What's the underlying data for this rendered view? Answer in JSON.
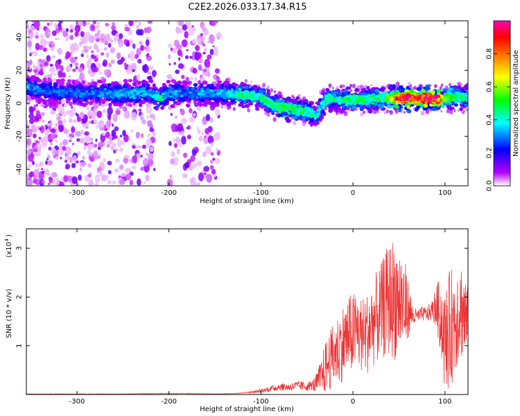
{
  "figure": {
    "title": "C2E2.2026.033.17.34.R15"
  },
  "chart_data": [
    {
      "type": "heatmap",
      "name": "spectrogram",
      "xlabel": "Height of straight line (km)",
      "ylabel": "Frequency (Hz)",
      "xlim": [
        -355,
        125
      ],
      "ylim": [
        -50,
        50
      ],
      "xticks": [
        -300,
        -200,
        -100,
        0,
        100
      ],
      "yticks": [
        -40,
        -20,
        0,
        20,
        40
      ],
      "xtick_labels": [
        "-300",
        "-200",
        "-100",
        "0",
        "100"
      ],
      "ytick_labels": [
        "-40",
        "-20",
        "0",
        "20",
        "40"
      ],
      "colorbar": {
        "label": "Normalized spectral amplitude",
        "range": [
          0,
          1
        ],
        "ticks": [
          0.0,
          0.2,
          0.4,
          0.6,
          0.8
        ],
        "tick_labels": [
          "0.0",
          "0.2",
          "0.4",
          "0.6",
          "0.8"
        ],
        "colors": [
          "#ffffff",
          "#b400ff",
          "#0000ff",
          "#00ffff",
          "#00ff00",
          "#ffff00",
          "#ff8000",
          "#ff0000",
          "#ff00b4"
        ]
      },
      "ridge": {
        "x": [
          -355,
          -340,
          -330,
          -320,
          -300,
          -280,
          -260,
          -240,
          -220,
          -210,
          -200,
          -180,
          -160,
          -140,
          -120,
          -100,
          -90,
          -80,
          -70,
          -60,
          -50,
          -40,
          -35,
          -30,
          -20,
          -10,
          0,
          10,
          20,
          30,
          40,
          50,
          60,
          70,
          80,
          90,
          100,
          110,
          125
        ],
        "y": [
          10,
          8,
          8,
          7,
          6,
          6,
          6,
          6,
          6,
          3,
          6,
          6,
          6,
          6,
          5,
          4,
          0,
          -2,
          -3,
          -4,
          -5,
          -8,
          -2,
          2,
          3,
          2,
          2,
          2,
          3,
          3,
          3,
          3,
          3,
          3,
          3,
          3,
          3,
          4,
          3
        ],
        "amplitude": [
          0.35,
          0.3,
          0.3,
          0.3,
          0.3,
          0.3,
          0.35,
          0.35,
          0.35,
          0.45,
          0.35,
          0.3,
          0.35,
          0.35,
          0.45,
          0.45,
          0.5,
          0.5,
          0.5,
          0.5,
          0.45,
          0.4,
          0.4,
          0.45,
          0.45,
          0.45,
          0.5,
          0.5,
          0.5,
          0.5,
          0.55,
          0.98,
          0.98,
          0.98,
          0.98,
          0.98,
          0.6,
          0.5,
          0.45
        ]
      },
      "noise_region_x": [
        -355,
        -145
      ],
      "noise_gap_x": [
        -215,
        -200
      ]
    },
    {
      "type": "line",
      "name": "snr",
      "xlabel": "Height of straight line (km)",
      "ylabel": "SNR (10 * v/v)",
      "y_scale_label": "(x10",
      "y_scale_exponent": "4",
      "y_scale_close": ")",
      "xlim": [
        -355,
        125
      ],
      "ylim": [
        0,
        3.4
      ],
      "xticks": [
        -300,
        -200,
        -100,
        0,
        100
      ],
      "yticks": [
        1,
        2,
        3
      ],
      "xtick_labels": [
        "-300",
        "-200",
        "-100",
        "0",
        "100"
      ],
      "ytick_labels": [
        "1",
        "2",
        "3"
      ],
      "color": "#ee3333",
      "series": [
        {
          "name": "SNR",
          "x": [
            -355,
            -300,
            -250,
            -200,
            -180,
            -150,
            -130,
            -110,
            -100,
            -90,
            -80,
            -70,
            -60,
            -50,
            -45,
            -40,
            -35,
            -30,
            -25,
            -20,
            -15,
            -10,
            -5,
            0,
            5,
            10,
            15,
            20,
            25,
            30,
            35,
            40,
            45,
            50,
            55,
            60,
            65,
            70,
            75,
            80,
            85,
            90,
            95,
            100,
            105,
            110,
            115,
            120,
            125
          ],
          "y": [
            0.01,
            0.01,
            0.01,
            0.02,
            0.02,
            0.01,
            0.02,
            0.05,
            0.07,
            0.12,
            0.16,
            0.15,
            0.18,
            0.17,
            0.18,
            0.22,
            0.35,
            0.55,
            0.7,
            0.85,
            0.95,
            1.1,
            1.2,
            1.25,
            1.3,
            1.2,
            1.25,
            1.45,
            1.55,
            1.65,
            1.85,
            1.95,
            2.0,
            1.95,
            1.85,
            1.75,
            1.6,
            1.6,
            1.65,
            1.65,
            1.7,
            1.8,
            1.65,
            1.05,
            1.35,
            1.5,
            1.8,
            1.7,
            1.4
          ],
          "noise_amplitude": [
            0.0,
            0.0,
            0.0,
            0.0,
            0.0,
            0.0,
            0.0,
            0.02,
            0.04,
            0.06,
            0.08,
            0.08,
            0.1,
            0.1,
            0.1,
            0.2,
            0.35,
            0.55,
            0.6,
            0.7,
            0.75,
            0.8,
            0.85,
            0.85,
            0.85,
            0.8,
            0.85,
            0.9,
            0.95,
            1.0,
            1.1,
            1.2,
            1.3,
            1.2,
            1.1,
            0.6,
            0.2,
            0.15,
            0.15,
            0.15,
            0.2,
            0.4,
            0.8,
            1.1,
            1.2,
            1.2,
            1.1,
            1.0,
            0.9
          ]
        }
      ]
    }
  ]
}
